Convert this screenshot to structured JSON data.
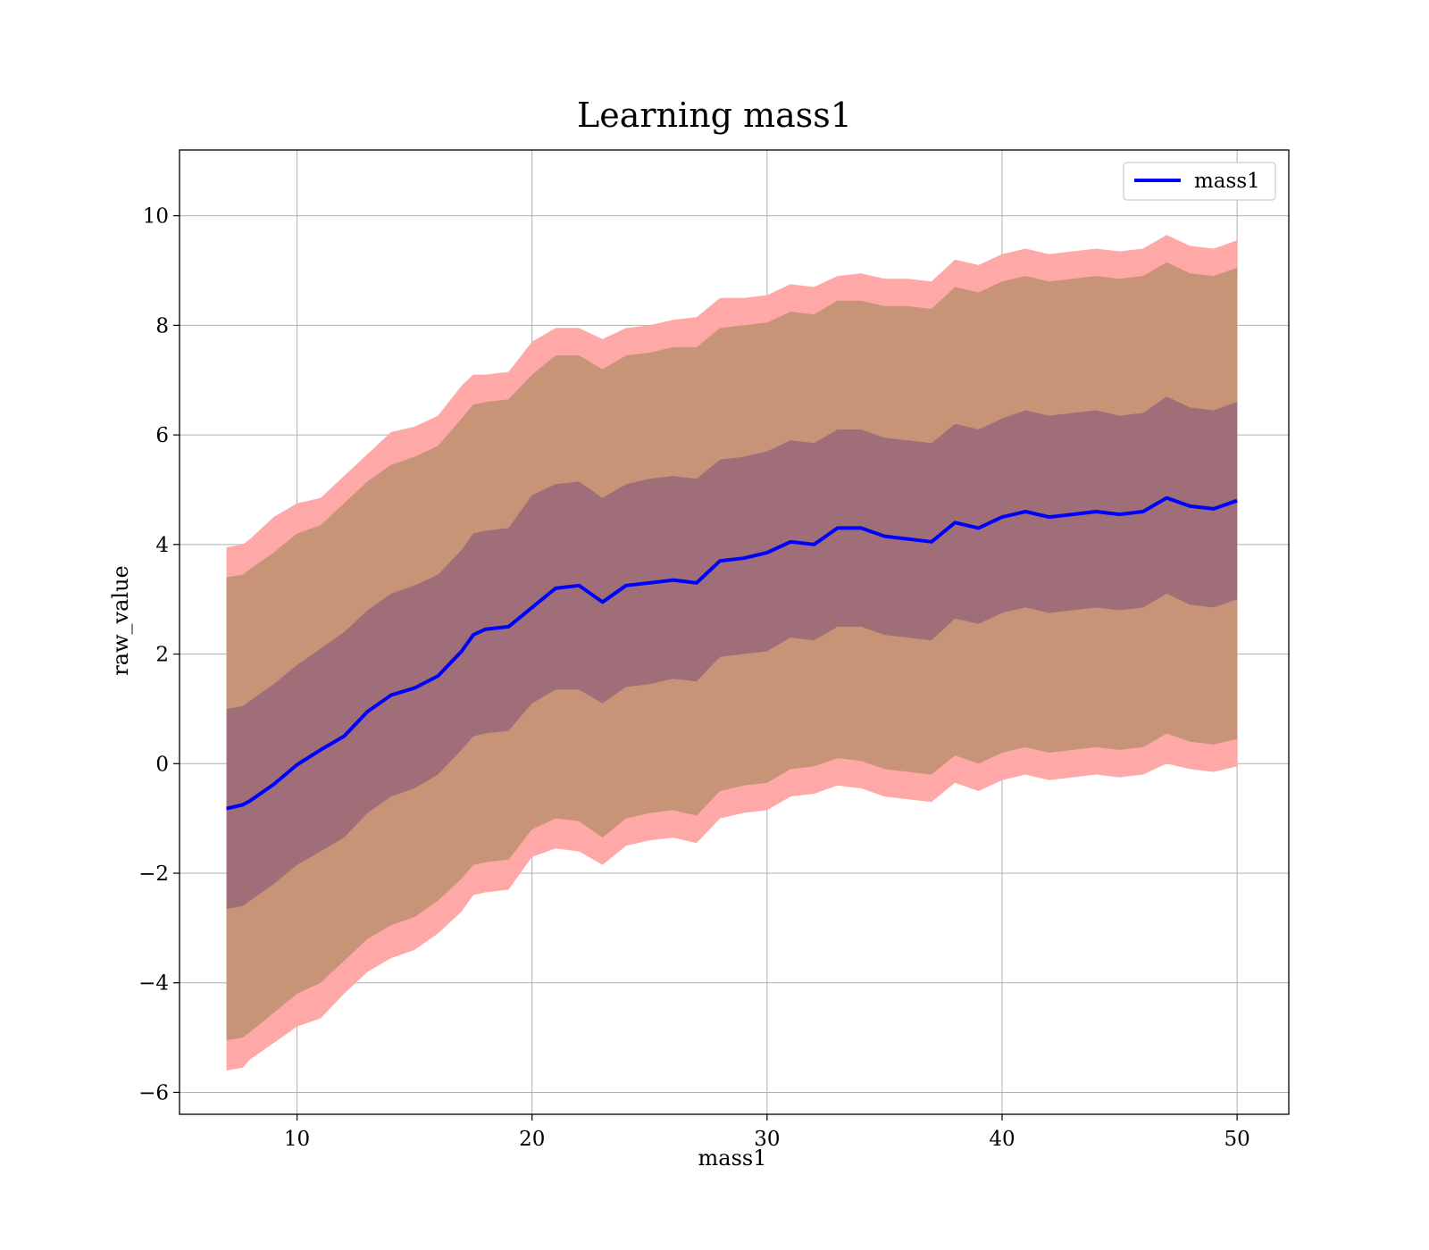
{
  "chart_data": {
    "type": "line",
    "title": "Learning mass1",
    "xlabel": "mass1",
    "ylabel": "raw_value",
    "xlim": [
      5,
      52.2
    ],
    "ylim": [
      -6.4,
      11.2
    ],
    "x_ticks": [
      10,
      20,
      30,
      40,
      50
    ],
    "x_tick_labels": [
      "10",
      "20",
      "30",
      "40",
      "50"
    ],
    "y_ticks": [
      -6,
      -4,
      -2,
      0,
      2,
      4,
      6,
      8,
      10
    ],
    "y_tick_labels": [
      "−6",
      "−4",
      "−2",
      "0",
      "2",
      "4",
      "6",
      "8",
      "10"
    ],
    "grid": true,
    "legend": {
      "position": "top-right",
      "entries": [
        "mass1"
      ]
    },
    "colors": {
      "line": "#0000ff",
      "band": "#ff0000",
      "outer_band": "#ffa8a8",
      "middle_band": "#c89478",
      "inner_band": "#a06e78"
    },
    "x": [
      7,
      7.7,
      8,
      9,
      10,
      11,
      12,
      13,
      14,
      15,
      16,
      17,
      17.5,
      18,
      19,
      20,
      21,
      22,
      23,
      24,
      25,
      26,
      27,
      28,
      29,
      30,
      31,
      32,
      33,
      34,
      35,
      36,
      37,
      38,
      39,
      40,
      41,
      42,
      43,
      44,
      45,
      46,
      47,
      48,
      49,
      50
    ],
    "series": [
      {
        "name": "mass1",
        "role": "mean",
        "y": [
          -0.82,
          -0.75,
          -0.68,
          -0.38,
          -0.02,
          0.25,
          0.5,
          0.95,
          1.25,
          1.38,
          1.6,
          2.05,
          2.35,
          2.45,
          2.5,
          2.85,
          3.2,
          3.25,
          2.95,
          3.25,
          3.3,
          3.35,
          3.3,
          3.7,
          3.75,
          3.85,
          4.05,
          4.0,
          4.3,
          4.3,
          4.15,
          4.1,
          4.05,
          4.4,
          4.3,
          4.5,
          4.6,
          4.5,
          4.55,
          4.6,
          4.55,
          4.6,
          4.85,
          4.7,
          4.65,
          4.8
        ]
      },
      {
        "name": "",
        "role": "band_3sigma",
        "lower": [
          -5.6,
          -5.55,
          -5.4,
          -5.1,
          -4.8,
          -4.65,
          -4.2,
          -3.8,
          -3.55,
          -3.4,
          -3.1,
          -2.7,
          -2.4,
          -2.35,
          -2.3,
          -1.7,
          -1.55,
          -1.6,
          -1.85,
          -1.5,
          -1.4,
          -1.35,
          -1.45,
          -1.0,
          -0.9,
          -0.85,
          -0.6,
          -0.55,
          -0.4,
          -0.45,
          -0.6,
          -0.65,
          -0.7,
          -0.35,
          -0.5,
          -0.3,
          -0.2,
          -0.3,
          -0.25,
          -0.2,
          -0.25,
          -0.2,
          0.0,
          -0.1,
          -0.15,
          -0.05
        ],
        "upper": [
          3.95,
          4.0,
          4.1,
          4.5,
          4.75,
          4.85,
          5.25,
          5.65,
          6.05,
          6.15,
          6.35,
          6.9,
          7.1,
          7.1,
          7.15,
          7.7,
          7.95,
          7.95,
          7.75,
          7.95,
          8.0,
          8.1,
          8.15,
          8.5,
          8.5,
          8.55,
          8.75,
          8.7,
          8.9,
          8.95,
          8.85,
          8.85,
          8.8,
          9.2,
          9.1,
          9.3,
          9.4,
          9.3,
          9.35,
          9.4,
          9.35,
          9.4,
          9.65,
          9.45,
          9.4,
          9.55
        ]
      },
      {
        "name": "",
        "role": "band_2sigma",
        "lower": [
          -5.05,
          -5.0,
          -4.9,
          -4.55,
          -4.2,
          -4.0,
          -3.6,
          -3.2,
          -2.95,
          -2.8,
          -2.5,
          -2.1,
          -1.85,
          -1.8,
          -1.75,
          -1.2,
          -1.0,
          -1.05,
          -1.35,
          -1.0,
          -0.9,
          -0.85,
          -0.95,
          -0.5,
          -0.4,
          -0.35,
          -0.1,
          -0.05,
          0.1,
          0.05,
          -0.1,
          -0.15,
          -0.2,
          0.15,
          0.0,
          0.2,
          0.3,
          0.2,
          0.25,
          0.3,
          0.25,
          0.3,
          0.55,
          0.4,
          0.35,
          0.45
        ],
        "upper": [
          3.4,
          3.45,
          3.55,
          3.85,
          4.2,
          4.35,
          4.75,
          5.15,
          5.45,
          5.6,
          5.8,
          6.3,
          6.55,
          6.6,
          6.65,
          7.1,
          7.45,
          7.45,
          7.2,
          7.45,
          7.5,
          7.6,
          7.6,
          7.95,
          8.0,
          8.05,
          8.25,
          8.2,
          8.45,
          8.45,
          8.35,
          8.35,
          8.3,
          8.7,
          8.6,
          8.8,
          8.9,
          8.8,
          8.85,
          8.9,
          8.85,
          8.9,
          9.15,
          8.95,
          8.9,
          9.05
        ]
      },
      {
        "name": "",
        "role": "band_1sigma",
        "lower": [
          -2.65,
          -2.6,
          -2.5,
          -2.2,
          -1.85,
          -1.6,
          -1.35,
          -0.9,
          -0.6,
          -0.45,
          -0.2,
          0.25,
          0.5,
          0.55,
          0.6,
          1.1,
          1.35,
          1.35,
          1.1,
          1.4,
          1.45,
          1.55,
          1.5,
          1.95,
          2.0,
          2.05,
          2.3,
          2.25,
          2.5,
          2.5,
          2.35,
          2.3,
          2.25,
          2.65,
          2.55,
          2.75,
          2.85,
          2.75,
          2.8,
          2.85,
          2.8,
          2.85,
          3.1,
          2.9,
          2.85,
          3.0
        ],
        "upper": [
          1.0,
          1.05,
          1.15,
          1.45,
          1.8,
          2.1,
          2.4,
          2.8,
          3.1,
          3.25,
          3.45,
          3.9,
          4.2,
          4.25,
          4.3,
          4.9,
          5.1,
          5.15,
          4.85,
          5.1,
          5.2,
          5.25,
          5.2,
          5.55,
          5.6,
          5.7,
          5.9,
          5.85,
          6.1,
          6.1,
          5.95,
          5.9,
          5.85,
          6.2,
          6.1,
          6.3,
          6.45,
          6.35,
          6.4,
          6.45,
          6.35,
          6.4,
          6.7,
          6.5,
          6.45,
          6.6
        ]
      }
    ]
  }
}
